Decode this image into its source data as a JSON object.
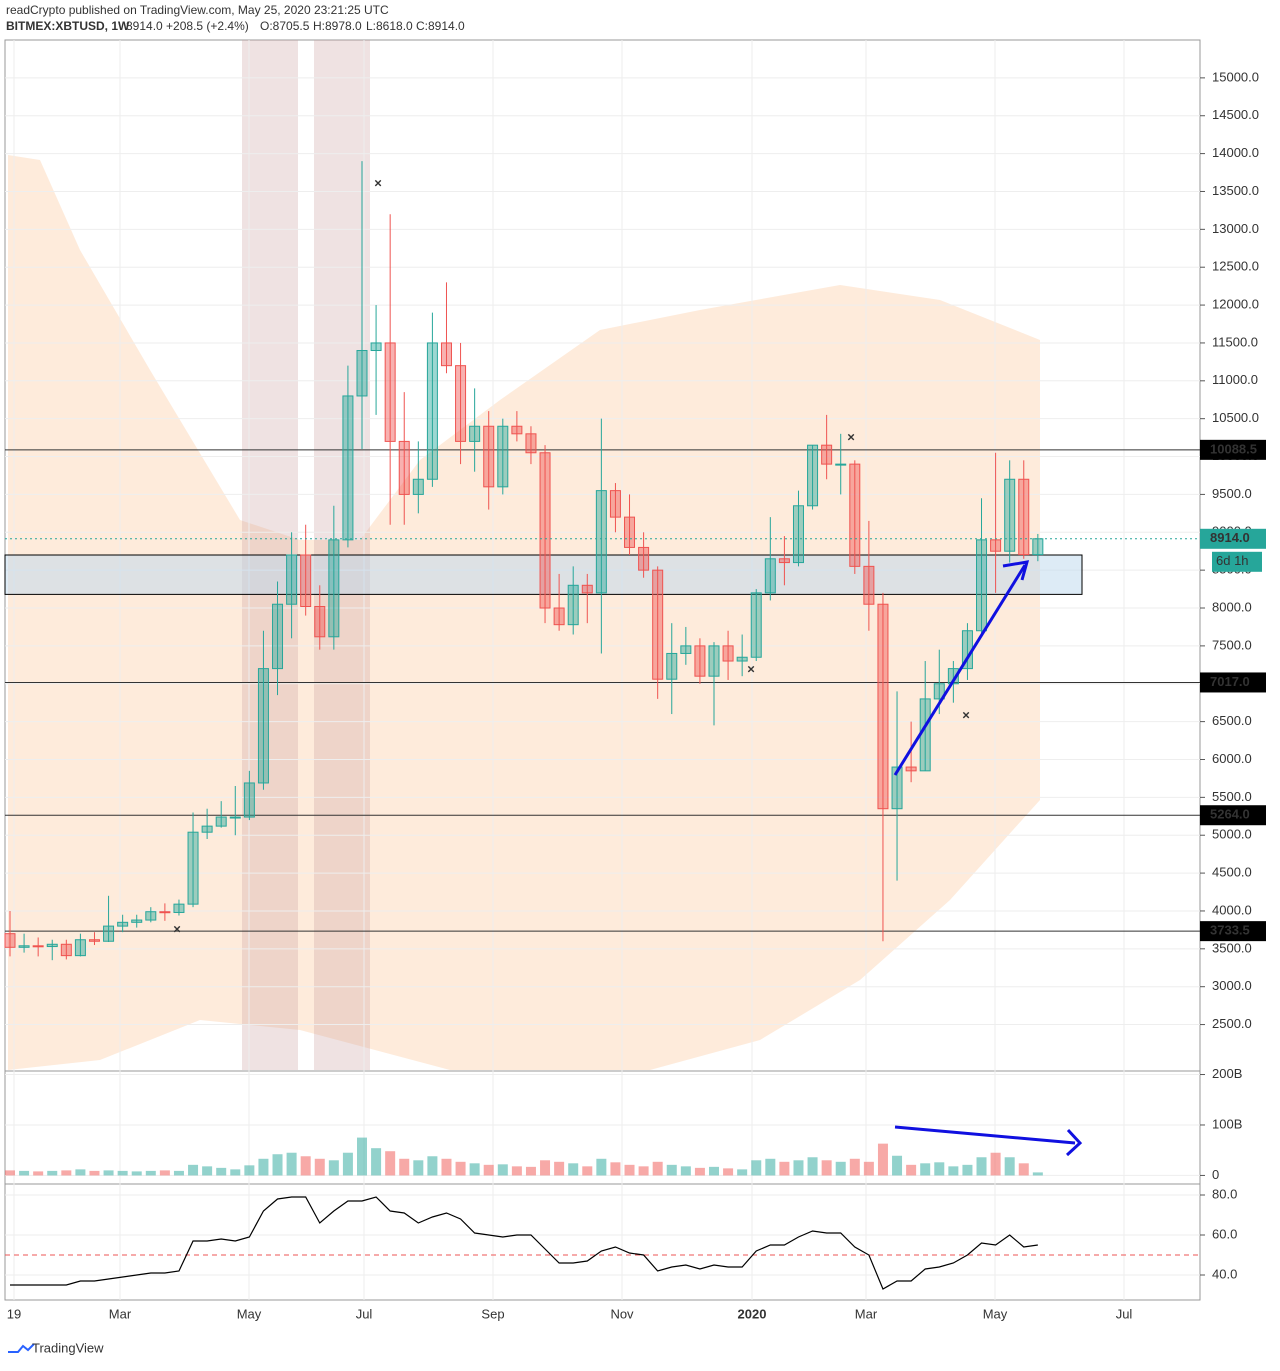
{
  "header": {
    "published": "readCrypto published on TradingView.com, May 25, 2020 23:21:25 UTC",
    "symbol": "BITMEX:XBTUSD, 1W",
    "quote": "8914.0 +208.5 (+2.4%)",
    "o": "O:8705.5",
    "h": "H:8978.0",
    "l": "L:8618.0",
    "c": "C:8914.0"
  },
  "footer": "TradingView",
  "chart_data": {
    "type": "candlestick",
    "xlabels": [
      "19",
      "Mar",
      "May",
      "Jul",
      "Sep",
      "Nov",
      "2020",
      "Mar",
      "May",
      "Jul"
    ],
    "open": [
      3700,
      3520,
      3540,
      3530,
      3560,
      3410,
      3620,
      3600,
      3800,
      3850,
      3880,
      3990,
      3980,
      4090,
      5040,
      5120,
      5240,
      5240,
      5690,
      7200,
      8050,
      8700,
      8020,
      7620,
      8900,
      10800,
      11400,
      11500,
      10200,
      9500,
      9700,
      11500,
      11200,
      10200,
      10400,
      9600,
      10400,
      10300,
      10050,
      8000,
      7780,
      8300,
      8200,
      9550,
      9200,
      8800,
      8500,
      7060,
      7400,
      7500,
      7100,
      7500,
      7300,
      7350,
      8200,
      8650,
      8600,
      9350,
      10150,
      9900,
      9900,
      8550,
      8050,
      5350,
      5900,
      5850,
      6800,
      7000,
      7200,
      7700,
      8900,
      8750,
      9700,
      8705.5
    ],
    "high": [
      4000,
      3700,
      3650,
      3620,
      3620,
      3700,
      3720,
      4200,
      3950,
      3950,
      4050,
      4100,
      4150,
      5300,
      5350,
      5450,
      5650,
      5850,
      7700,
      8350,
      9000,
      9100,
      8300,
      9350,
      11200,
      13900,
      12000,
      13200,
      10850,
      10200,
      11900,
      12300,
      11500,
      10900,
      10600,
      10500,
      10600,
      10400,
      10150,
      8450,
      8550,
      8450,
      10500,
      9650,
      9500,
      9000,
      8550,
      7800,
      7750,
      7600,
      7550,
      7700,
      7650,
      8250,
      9200,
      8950,
      9550,
      10150,
      10550,
      10300,
      9950,
      9150,
      8200,
      6900,
      6500,
      7300,
      7450,
      7300,
      7800,
      9450,
      10050,
      9950,
      9950,
      8978
    ],
    "low": [
      3400,
      3450,
      3400,
      3350,
      3360,
      3400,
      3550,
      3590,
      3720,
      3780,
      3850,
      3870,
      3940,
      4050,
      4950,
      5100,
      5000,
      5200,
      5600,
      6850,
      7600,
      7900,
      7450,
      7450,
      8800,
      10100,
      10550,
      9100,
      9100,
      9250,
      9600,
      11100,
      9900,
      9800,
      9300,
      9500,
      10200,
      9900,
      7800,
      7700,
      7650,
      7800,
      7400,
      9000,
      8700,
      8400,
      6800,
      6600,
      7250,
      7000,
      6450,
      7050,
      7100,
      7300,
      8100,
      8300,
      8550,
      9300,
      9700,
      9500,
      8450,
      7700,
      3600,
      4400,
      5700,
      5850,
      6600,
      6750,
      7050,
      7650,
      8200,
      8600,
      8650,
      8618
    ],
    "close": [
      3520,
      3540,
      3530,
      3560,
      3410,
      3620,
      3600,
      3800,
      3850,
      3880,
      3990,
      3980,
      4090,
      5040,
      5120,
      5240,
      5240,
      5690,
      7200,
      8050,
      8700,
      8020,
      7620,
      8900,
      10800,
      11400,
      11500,
      10200,
      9500,
      9700,
      11500,
      11200,
      10200,
      10400,
      9600,
      10400,
      10300,
      10050,
      8000,
      7780,
      8300,
      8200,
      9550,
      9200,
      8800,
      8500,
      7060,
      7400,
      7500,
      7100,
      7500,
      7300,
      7350,
      8200,
      8650,
      8600,
      9350,
      10150,
      9900,
      9900,
      8550,
      8050,
      5350,
      5900,
      5850,
      6800,
      7000,
      7200,
      7700,
      8900,
      8750,
      9700,
      8705.5,
      8914
    ],
    "up_color": "#26a69a",
    "down_color": "#ef5350",
    "ylim": [
      1900,
      15500
    ],
    "yticks": [
      {
        "value": 2500,
        "label": "2500.0"
      },
      {
        "value": 3000,
        "label": "3000.0"
      },
      {
        "value": 3500,
        "label": "3500.0"
      },
      {
        "value": 4000,
        "label": "4000.0"
      },
      {
        "value": 4500,
        "label": "4500.0"
      },
      {
        "value": 5000,
        "label": "5000.0"
      },
      {
        "value": 5500,
        "label": "5500.0"
      },
      {
        "value": 6000,
        "label": "6000.0"
      },
      {
        "value": 6500,
        "label": "6500.0"
      },
      {
        "value": 7000,
        "label": "7000.0"
      },
      {
        "value": 7500,
        "label": "7500.0"
      },
      {
        "value": 8000,
        "label": "8000.0"
      },
      {
        "value": 8500,
        "label": "8500.0"
      },
      {
        "value": 9000,
        "label": "9000.0"
      },
      {
        "value": 9500,
        "label": "9500.0"
      },
      {
        "value": 10000,
        "label": "10000.0"
      },
      {
        "value": 10500,
        "label": "10500.0"
      },
      {
        "value": 11000,
        "label": "11000.0"
      },
      {
        "value": 11500,
        "label": "11500.0"
      },
      {
        "value": 12000,
        "label": "12000.0"
      },
      {
        "value": 12500,
        "label": "12500.0"
      },
      {
        "value": 13000,
        "label": "13000.0"
      },
      {
        "value": 13500,
        "label": "13500.0"
      },
      {
        "value": 14000,
        "label": "14000.0"
      },
      {
        "value": 14500,
        "label": "14500.0"
      },
      {
        "value": 15000,
        "label": "15000.0"
      }
    ],
    "levels": [
      {
        "value": 10088.5,
        "label": "10088.5"
      },
      {
        "value": 7017,
        "label": "7017.0"
      },
      {
        "value": 5264,
        "label": "5264.0"
      },
      {
        "value": 3733.5,
        "label": "3733.5"
      }
    ],
    "last_price": {
      "value": 8914,
      "label": "8914.0"
    },
    "countdown": "6d 1h",
    "zone": [
      8180,
      8700
    ],
    "volume": [
      10,
      9,
      8,
      9,
      10,
      12,
      9,
      10,
      9,
      8,
      9,
      10,
      9,
      21,
      18,
      15,
      12,
      20,
      33,
      42,
      45,
      38,
      33,
      30,
      45,
      75,
      54,
      48,
      33,
      30,
      38,
      33,
      27,
      24,
      21,
      22,
      18,
      17,
      30,
      27,
      24,
      18,
      33,
      26,
      21,
      18,
      27,
      21,
      18,
      15,
      17,
      14,
      12,
      30,
      33,
      27,
      30,
      36,
      30,
      27,
      33,
      27,
      63,
      39,
      21,
      24,
      26,
      18,
      21,
      36,
      45,
      36,
      24,
      6
    ],
    "vlim": [
      -15,
      205
    ],
    "vticks": [
      0,
      {
        "value": 100,
        "label": "100B"
      },
      {
        "value": 200,
        "label": "200B"
      }
    ],
    "rsi": [
      35,
      35,
      35,
      35,
      35,
      37,
      37,
      38,
      39,
      40,
      41,
      41,
      42,
      57,
      57,
      58,
      57,
      59,
      72,
      78,
      79,
      79,
      66,
      72,
      77,
      77,
      79,
      72,
      71,
      66,
      69,
      71,
      68,
      61,
      60,
      59,
      60,
      60,
      53,
      46,
      46,
      47,
      52,
      54,
      51,
      50,
      42,
      44,
      45,
      43,
      45,
      44,
      44,
      52,
      55,
      55,
      59,
      62,
      61,
      61,
      54,
      50,
      33,
      37,
      37,
      43,
      44,
      46,
      50,
      56,
      55,
      60,
      54,
      55
    ],
    "rsi_color": "#000000",
    "rlim": [
      27.5,
      85
    ],
    "rticks": [
      {
        "value": 40,
        "label": "40.0"
      },
      {
        "value": 60,
        "label": "60.0"
      },
      {
        "value": 80,
        "label": "80.0"
      }
    ],
    "rsi_mid": 50
  }
}
